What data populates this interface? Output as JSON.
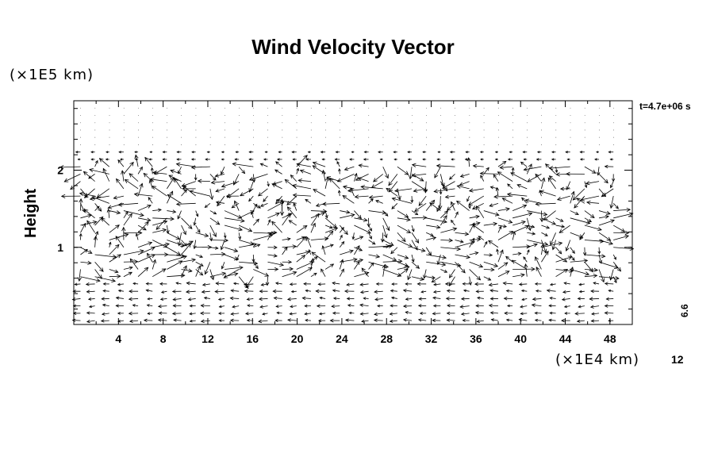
{
  "chart_data": {
    "type": "vector_field",
    "title": "Wind Velocity Vector",
    "ylabel": "Height",
    "y_unit": "(×1E5 km)",
    "x_unit": "(×1E4 km)",
    "time_label": "t=4.7e+06 s",
    "reference_vector_value": "6.6",
    "reference_scale_label": "12",
    "x_ticks": [
      4,
      8,
      12,
      16,
      20,
      24,
      28,
      32,
      36,
      40,
      44,
      48
    ],
    "y_ticks": [
      1,
      2
    ],
    "xlim": [
      0,
      50
    ],
    "ylim": [
      0,
      2.9
    ]
  }
}
